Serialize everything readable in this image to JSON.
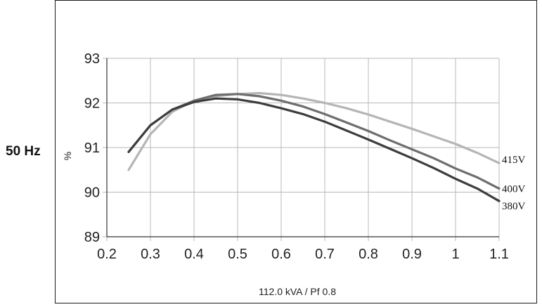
{
  "side_label": "50 Hz",
  "colors": {
    "frame": "#1a1a1a",
    "grid": "#b8b8b8",
    "axis": "#333333"
  },
  "chart_data": {
    "type": "line",
    "title": "",
    "xlabel": "112.0 kVA  / Pf 0.8",
    "ylabel": "%",
    "xlim": [
      0.2,
      1.1
    ],
    "ylim": [
      89,
      93
    ],
    "grid": true,
    "x_ticks": [
      "0.2",
      "0.3",
      "0.4",
      "0.5",
      "0.6",
      "0.7",
      "0.8",
      "0.9",
      "1",
      "1.1"
    ],
    "y_ticks": [
      "89",
      "90",
      "91",
      "92",
      "93"
    ],
    "series": [
      {
        "name": "415V",
        "color": "#b5b5b5",
        "x": [
          0.25,
          0.3,
          0.35,
          0.4,
          0.45,
          0.5,
          0.55,
          0.6,
          0.65,
          0.7,
          0.75,
          0.8,
          0.85,
          0.9,
          0.95,
          1.0,
          1.05,
          1.1
        ],
        "y": [
          90.5,
          91.3,
          91.8,
          92.05,
          92.15,
          92.2,
          92.22,
          92.18,
          92.1,
          92.0,
          91.88,
          91.74,
          91.58,
          91.42,
          91.25,
          91.08,
          90.88,
          90.65
        ]
      },
      {
        "name": "400V",
        "color": "#6e6e6e",
        "x": [
          0.25,
          0.3,
          0.35,
          0.4,
          0.45,
          0.5,
          0.55,
          0.6,
          0.65,
          0.7,
          0.75,
          0.8,
          0.85,
          0.9,
          0.95,
          1.0,
          1.05,
          1.1
        ],
        "y": [
          90.9,
          91.5,
          91.85,
          92.05,
          92.18,
          92.2,
          92.15,
          92.05,
          91.92,
          91.75,
          91.56,
          91.37,
          91.16,
          90.96,
          90.76,
          90.53,
          90.33,
          90.08
        ]
      },
      {
        "name": "380V",
        "color": "#3d3d3d",
        "x": [
          0.25,
          0.3,
          0.35,
          0.4,
          0.45,
          0.5,
          0.55,
          0.6,
          0.65,
          0.7,
          0.75,
          0.8,
          0.85,
          0.9,
          0.95,
          1.0,
          1.05,
          1.1
        ],
        "y": [
          90.9,
          91.5,
          91.85,
          92.02,
          92.1,
          92.08,
          92.0,
          91.88,
          91.75,
          91.58,
          91.38,
          91.18,
          90.97,
          90.76,
          90.54,
          90.3,
          90.08,
          89.8
        ]
      }
    ]
  }
}
